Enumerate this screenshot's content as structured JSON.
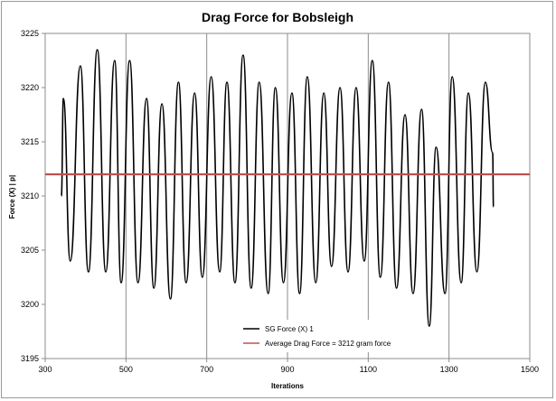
{
  "chart_data": {
    "type": "line",
    "title": "Drag Force for Bobsleigh",
    "xlabel": "Iterations",
    "ylabel": "Force (X) | p|",
    "xlim": [
      300,
      1500
    ],
    "ylim": [
      3195,
      3225
    ],
    "xticks": [
      300,
      500,
      700,
      900,
      1100,
      1300,
      1500
    ],
    "yticks": [
      3195,
      3200,
      3205,
      3210,
      3215,
      3220,
      3225
    ],
    "grid": "vertical",
    "legend_position": "bottom-center",
    "series": [
      {
        "name": "SG Force (X) 1",
        "color": "#000000",
        "x": [
          340,
          345,
          362,
          387,
          407,
          429,
          450,
          472,
          488,
          509,
          530,
          551,
          569,
          589,
          610,
          630,
          649,
          670,
          689,
          711,
          732,
          750,
          770,
          790,
          810,
          830,
          852,
          870,
          890,
          911,
          930,
          949,
          970,
          990,
          1009,
          1030,
          1050,
          1070,
          1090,
          1110,
          1130,
          1150,
          1170,
          1191,
          1211,
          1232,
          1251,
          1268,
          1290,
          1308,
          1330,
          1348,
          1369,
          1390,
          1408,
          1410
        ],
        "y": [
          3210,
          3219,
          3204,
          3222,
          3203,
          3223.5,
          3203,
          3222.5,
          3202,
          3222.5,
          3202,
          3219,
          3201.5,
          3218.5,
          3200.5,
          3220.5,
          3202,
          3219.5,
          3202.5,
          3221,
          3203,
          3220.5,
          3202,
          3223,
          3201.5,
          3220.5,
          3201,
          3220,
          3202,
          3219.5,
          3201,
          3221,
          3202,
          3219.5,
          3203.5,
          3220,
          3203,
          3220,
          3204,
          3222.5,
          3202.5,
          3220.5,
          3201.5,
          3217.5,
          3201,
          3218,
          3198,
          3214.5,
          3201,
          3221,
          3202,
          3219.5,
          3203,
          3220.5,
          3214,
          3209
        ]
      },
      {
        "name": "Average Drag Force = 3212 gram force",
        "color": "#c0504d",
        "constant": 3212
      }
    ]
  }
}
